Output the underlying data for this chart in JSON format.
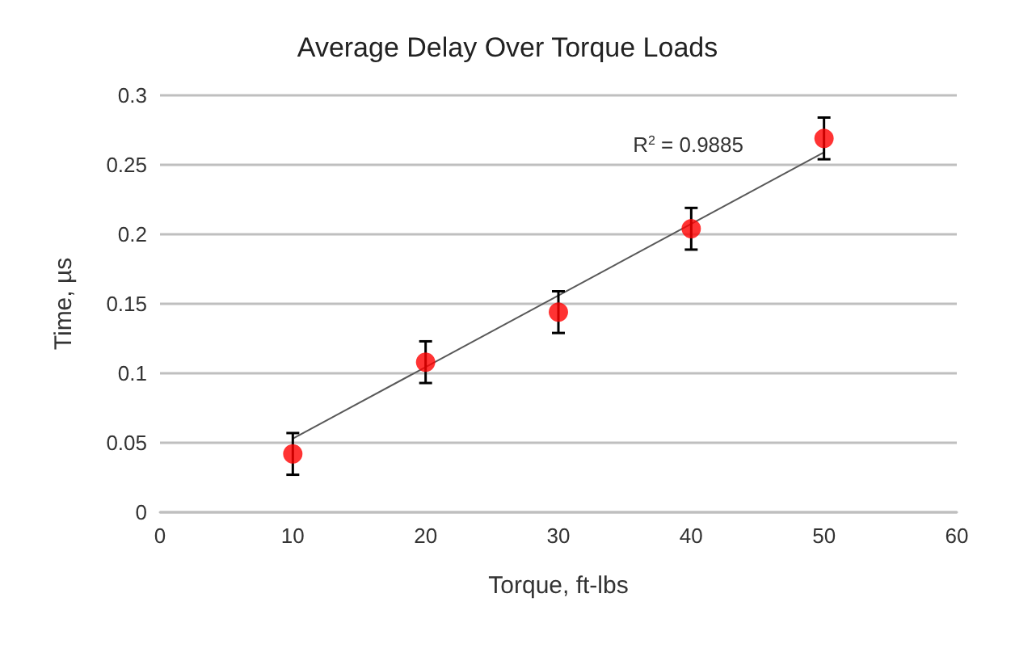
{
  "chart_data": {
    "type": "scatter",
    "title": "Average Delay Over Torque Loads",
    "xlabel": "Torque, ft-lbs",
    "ylabel": "Time, µs",
    "x": [
      10,
      20,
      30,
      40,
      50
    ],
    "series": [
      {
        "color": "#ff0000",
        "values": [
          0.042,
          0.108,
          0.144,
          0.204,
          0.269
        ],
        "errors": [
          0.015,
          0.015,
          0.015,
          0.015,
          0.015
        ]
      },
      {
        "type": "line",
        "color": "#595959",
        "x": [
          10,
          50
        ],
        "values": [
          0.053,
          0.259
        ],
        "marker": "none"
      }
    ],
    "xlim": [
      0,
      60
    ],
    "xticks": [
      0,
      10,
      20,
      30,
      40,
      50,
      60
    ],
    "ylim": [
      0,
      0.3
    ],
    "yticks": [
      0,
      0.05,
      0.1,
      0.15,
      0.2,
      0.25,
      0.3
    ],
    "grid": "y",
    "marker": "circle",
    "annotations": [
      "R$^{2}$ = 0.9885"
    ]
  }
}
